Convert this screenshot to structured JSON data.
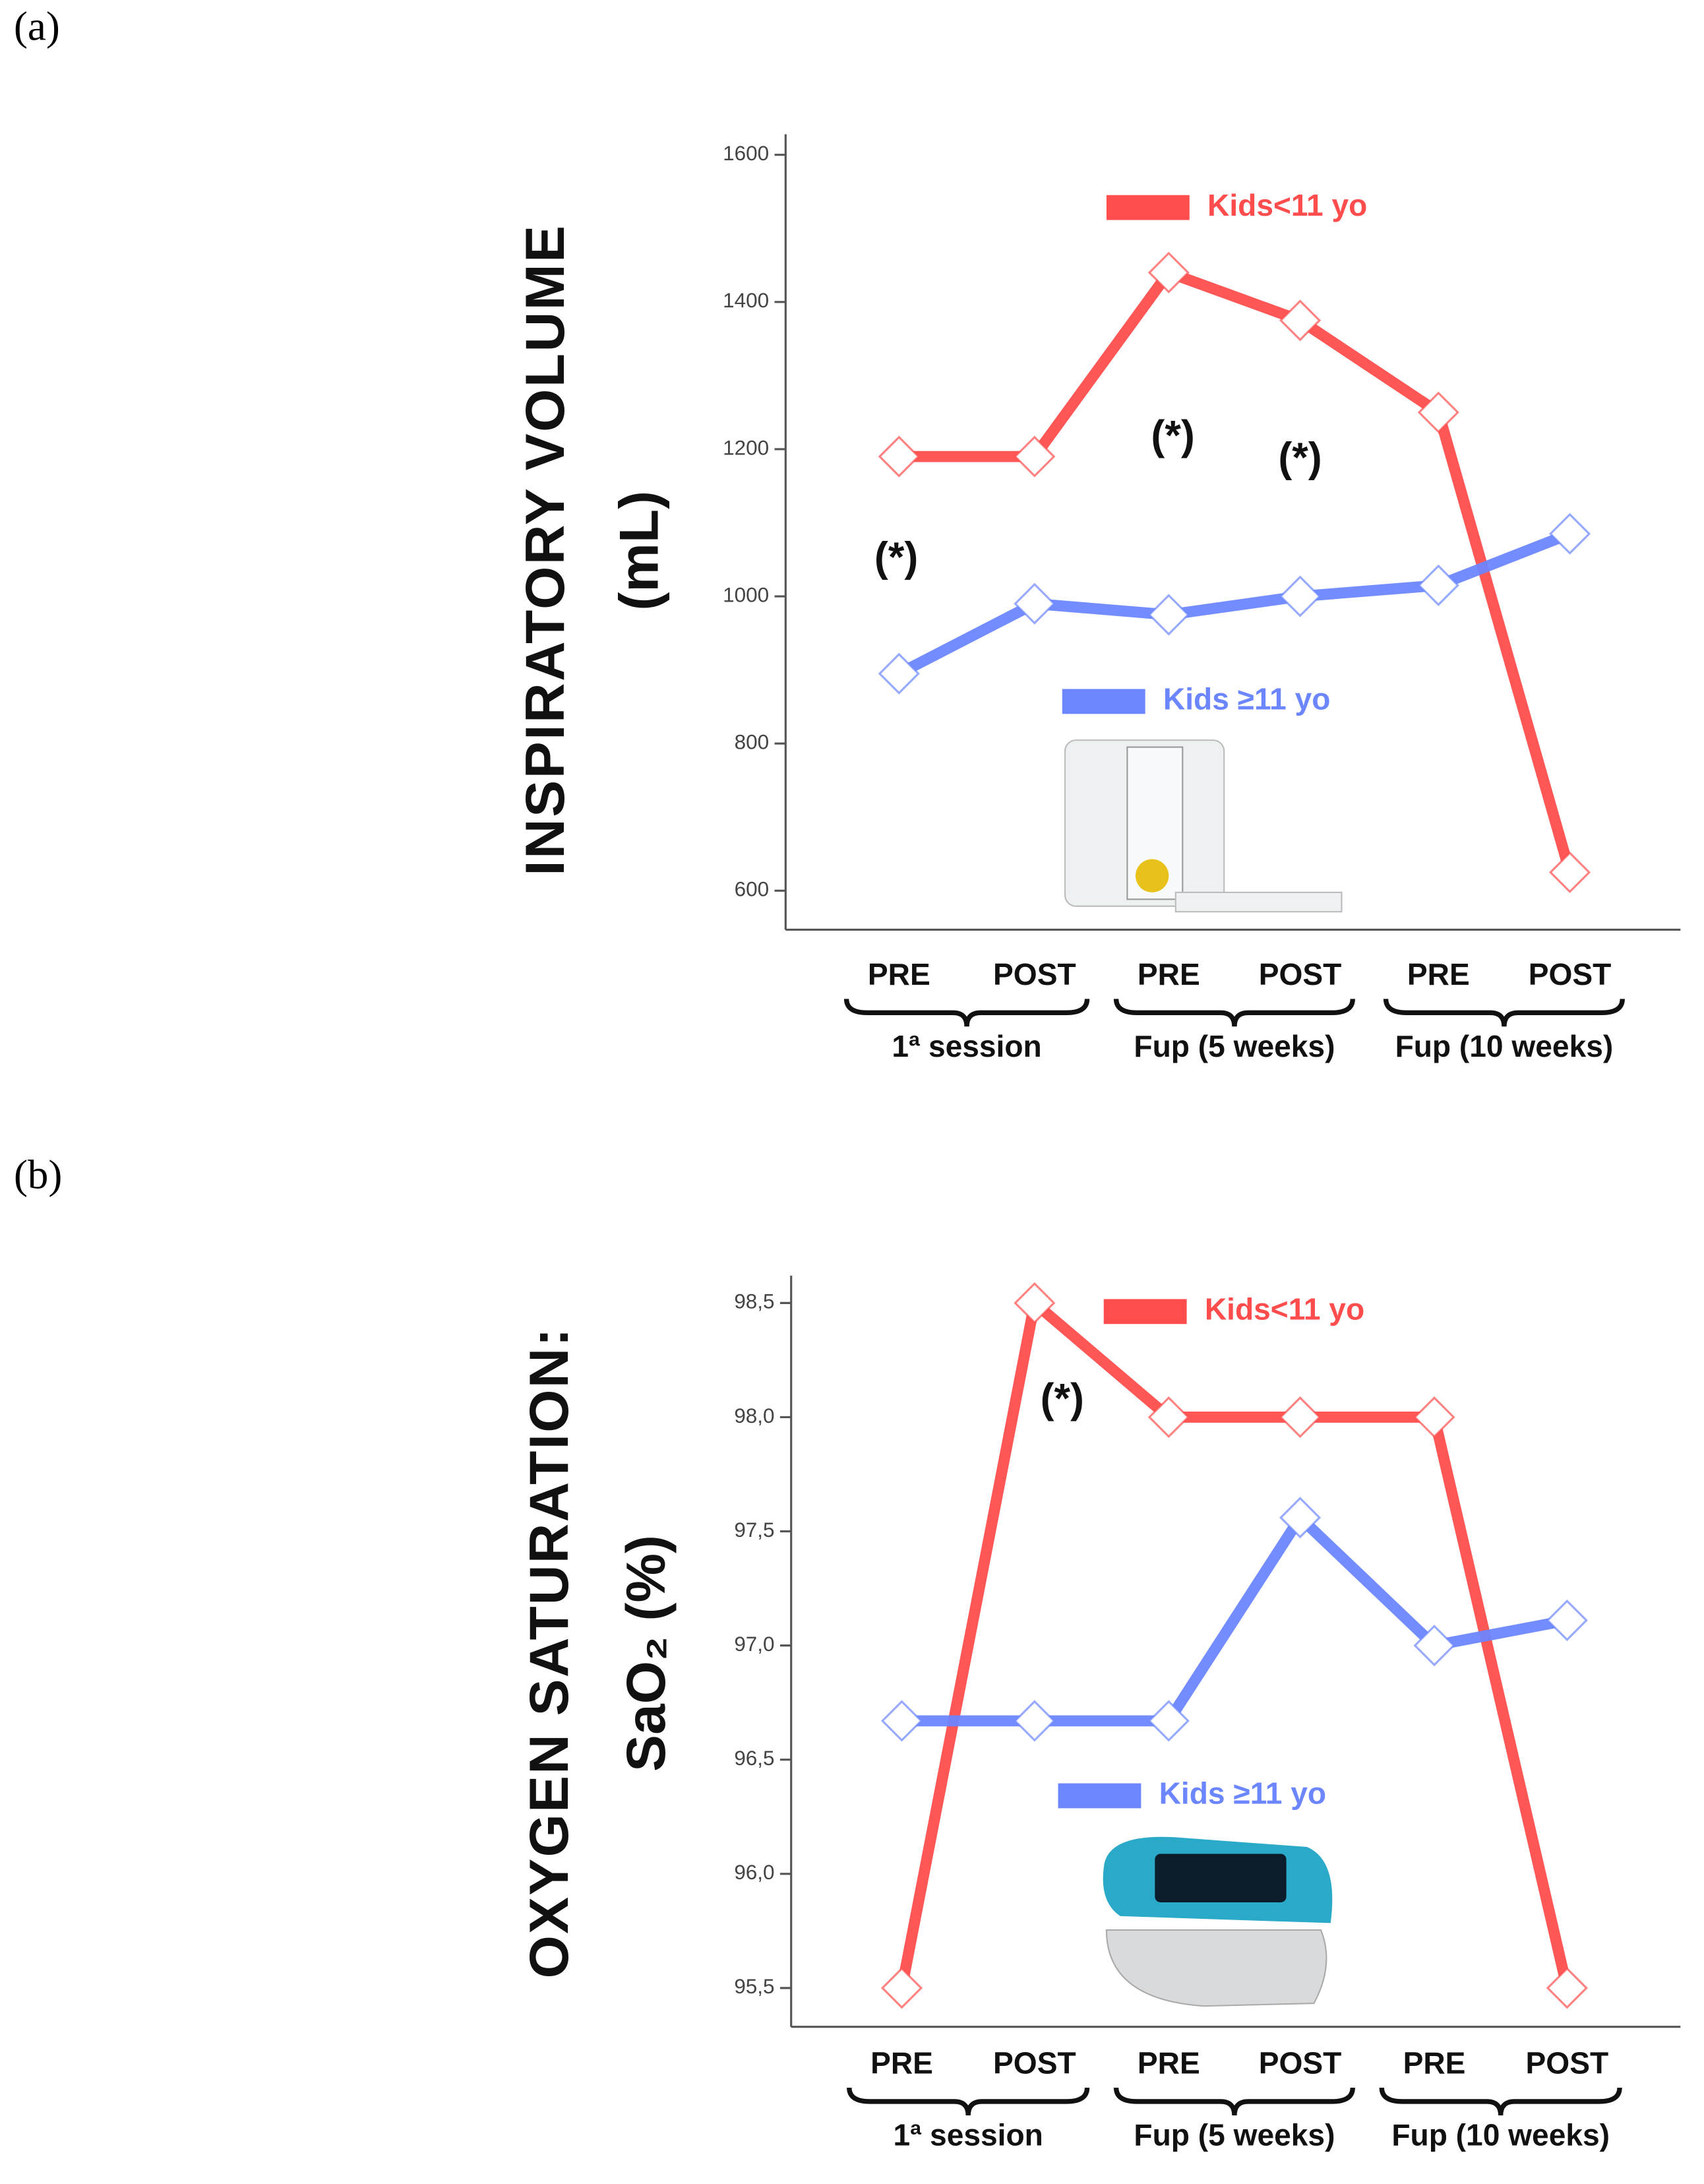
{
  "panels": [
    "(a)",
    "(b)"
  ],
  "chart_data": [
    {
      "type": "line",
      "ylabel": [
        "INSPIRATORY VOLUME",
        "(mL)"
      ],
      "categories": [
        "PRE",
        "POST",
        "PRE",
        "POST",
        "PRE",
        "POST"
      ],
      "groups": [
        "1ª session",
        "Fup (5 weeks)",
        "Fup (10 weeks)"
      ],
      "series": [
        {
          "name": "Kids<11 yo",
          "color": "#ff4d4d",
          "values": [
            1190,
            1190,
            1440,
            1375,
            1250,
            625
          ]
        },
        {
          "name": "Kids ≥11 yo",
          "color": "#6b86ff",
          "values": [
            895,
            990,
            975,
            1000,
            1015,
            1085
          ]
        }
      ],
      "annotations": [
        "(*)",
        "(*)",
        "(*)"
      ],
      "ylim": [
        547,
        1628
      ],
      "yticks": [
        600,
        800,
        1000,
        1200,
        1400,
        1600
      ]
    },
    {
      "type": "line",
      "ylabel": [
        "OXYGEN SATURATION:",
        "SaO₂ (%)"
      ],
      "categories": [
        "PRE",
        "POST",
        "PRE",
        "POST",
        "PRE",
        "POST"
      ],
      "groups": [
        "1ª session",
        "Fup (5 weeks)",
        "Fup (10 weeks)"
      ],
      "series": [
        {
          "name": "Kids<11 yo",
          "color": "#ff4d4d",
          "values": [
            95.5,
            98.5,
            98.0,
            98.0,
            98.0,
            95.5
          ]
        },
        {
          "name": "Kids ≥11 yo",
          "color": "#6b86ff",
          "values": [
            96.67,
            96.67,
            96.67,
            97.56,
            97.0,
            97.11
          ]
        }
      ],
      "annotations": [
        "(*)"
      ],
      "ylim": [
        95.33,
        98.62
      ],
      "yticks": [
        {
          "value": 95.5,
          "label": "95,5"
        },
        {
          "value": 96,
          "label": "96,0"
        },
        {
          "value": 96.5,
          "label": "96,5"
        },
        {
          "value": 97,
          "label": "97,0"
        },
        {
          "value": 97.5,
          "label": "97,5"
        },
        {
          "value": 98,
          "label": "98,0"
        },
        {
          "value": 98.5,
          "label": "98,5"
        }
      ]
    }
  ]
}
